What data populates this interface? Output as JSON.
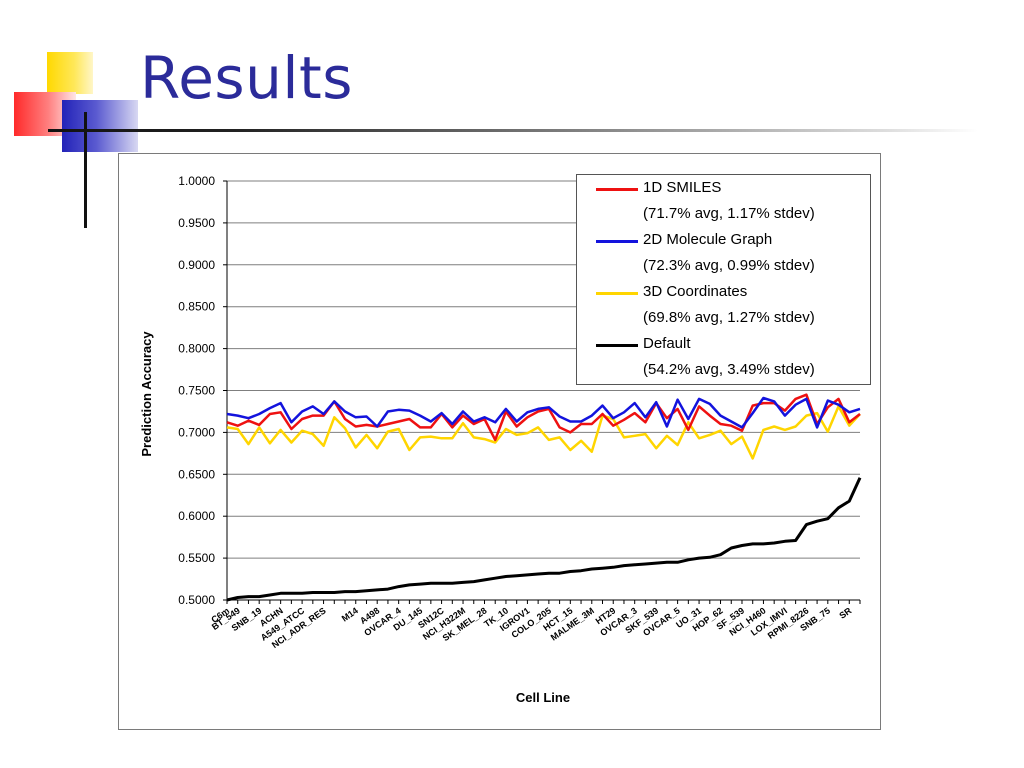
{
  "slide": {
    "title": "Results"
  },
  "chart_data": {
    "type": "line",
    "xlabel": "Cell Line",
    "ylabel": "Prediction Accuracy",
    "ylim": [
      0.5,
      1.0
    ],
    "yticks": [
      "1.0000",
      "0.9500",
      "0.9000",
      "0.8500",
      "0.8000",
      "0.7500",
      "0.7000",
      "0.6500",
      "0.6000",
      "0.5500",
      "0.5000"
    ],
    "grid": true,
    "legend_position": "top-right",
    "x_labels": [
      {
        "i": 0,
        "text": "C6m"
      },
      {
        "i": 1,
        "text": "BT_549"
      },
      {
        "i": 3,
        "text": "SNB_19"
      },
      {
        "i": 5,
        "text": "ACHN"
      },
      {
        "i": 7,
        "text": "A549_ATCC"
      },
      {
        "i": 9,
        "text": "NCI_ADR_RES"
      },
      {
        "i": 12,
        "text": "M14"
      },
      {
        "i": 14,
        "text": "A498"
      },
      {
        "i": 16,
        "text": "OVCAR_4"
      },
      {
        "i": 18,
        "text": "DU_145"
      },
      {
        "i": 20,
        "text": "SN12C"
      },
      {
        "i": 22,
        "text": "NCI_H322M"
      },
      {
        "i": 24,
        "text": "SK_MEL_28"
      },
      {
        "i": 26,
        "text": "TK_10"
      },
      {
        "i": 28,
        "text": "IGROV1"
      },
      {
        "i": 30,
        "text": "COLO_205"
      },
      {
        "i": 32,
        "text": "HCT_15"
      },
      {
        "i": 34,
        "text": "MALME_3M"
      },
      {
        "i": 36,
        "text": "HT29"
      },
      {
        "i": 38,
        "text": "OVCAR_3"
      },
      {
        "i": 40,
        "text": "SKF_539"
      },
      {
        "i": 42,
        "text": "OVCAR_5"
      },
      {
        "i": 44,
        "text": "UO_31"
      },
      {
        "i": 46,
        "text": "HOP_62"
      },
      {
        "i": 48,
        "text": "SF_539"
      },
      {
        "i": 50,
        "text": "NCI_H460"
      },
      {
        "i": 52,
        "text": "LOX_IMVI"
      },
      {
        "i": 54,
        "text": "RPMI_8226"
      },
      {
        "i": 56,
        "text": "SNB_75"
      },
      {
        "i": 58,
        "text": "SR"
      }
    ],
    "series": [
      {
        "name": "1D SMILES",
        "stat": "(71.7% avg, 1.17% stdev)",
        "color": "#ee1111",
        "values": [
          0.712,
          0.708,
          0.714,
          0.709,
          0.722,
          0.724,
          0.704,
          0.716,
          0.72,
          0.72,
          0.737,
          0.716,
          0.707,
          0.709,
          0.707,
          0.71,
          0.713,
          0.716,
          0.706,
          0.706,
          0.722,
          0.706,
          0.72,
          0.71,
          0.716,
          0.691,
          0.725,
          0.707,
          0.718,
          0.725,
          0.728,
          0.706,
          0.7,
          0.71,
          0.71,
          0.722,
          0.708,
          0.715,
          0.723,
          0.712,
          0.735,
          0.717,
          0.728,
          0.703,
          0.731,
          0.72,
          0.71,
          0.708,
          0.702,
          0.732,
          0.735,
          0.735,
          0.726,
          0.74,
          0.745,
          0.71,
          0.73,
          0.74,
          0.712,
          0.722
        ]
      },
      {
        "name": "2D Molecule Graph",
        "stat": "(72.3% avg, 0.99% stdev)",
        "color": "#1313dd",
        "values": [
          0.722,
          0.72,
          0.717,
          0.722,
          0.729,
          0.735,
          0.712,
          0.725,
          0.731,
          0.722,
          0.737,
          0.725,
          0.718,
          0.719,
          0.707,
          0.725,
          0.727,
          0.726,
          0.72,
          0.713,
          0.723,
          0.71,
          0.725,
          0.713,
          0.718,
          0.712,
          0.728,
          0.713,
          0.724,
          0.728,
          0.73,
          0.719,
          0.713,
          0.713,
          0.72,
          0.732,
          0.717,
          0.724,
          0.735,
          0.718,
          0.736,
          0.707,
          0.739,
          0.716,
          0.74,
          0.734,
          0.72,
          0.713,
          0.706,
          0.723,
          0.741,
          0.737,
          0.72,
          0.733,
          0.74,
          0.706,
          0.738,
          0.733,
          0.724,
          0.728
        ]
      },
      {
        "name": "3D Coordinates",
        "stat": "(69.8% avg, 1.27% stdev)",
        "color": "#ffd500",
        "values": [
          0.706,
          0.704,
          0.686,
          0.706,
          0.687,
          0.703,
          0.688,
          0.702,
          0.698,
          0.684,
          0.718,
          0.705,
          0.682,
          0.697,
          0.681,
          0.701,
          0.704,
          0.679,
          0.694,
          0.695,
          0.693,
          0.693,
          0.711,
          0.694,
          0.692,
          0.688,
          0.704,
          0.697,
          0.699,
          0.706,
          0.691,
          0.694,
          0.679,
          0.69,
          0.677,
          0.72,
          0.716,
          0.694,
          0.696,
          0.698,
          0.681,
          0.696,
          0.685,
          0.712,
          0.693,
          0.697,
          0.702,
          0.686,
          0.695,
          0.669,
          0.703,
          0.707,
          0.703,
          0.707,
          0.72,
          0.723,
          0.701,
          0.731,
          0.708,
          0.722
        ]
      },
      {
        "name": "Default",
        "stat": "(54.2% avg, 3.49% stdev)",
        "color": "#000000",
        "values": [
          0.5,
          0.503,
          0.504,
          0.504,
          0.506,
          0.508,
          0.508,
          0.508,
          0.509,
          0.509,
          0.509,
          0.51,
          0.51,
          0.511,
          0.512,
          0.513,
          0.516,
          0.518,
          0.519,
          0.52,
          0.52,
          0.52,
          0.521,
          0.522,
          0.524,
          0.526,
          0.528,
          0.529,
          0.53,
          0.531,
          0.532,
          0.532,
          0.534,
          0.535,
          0.537,
          0.538,
          0.539,
          0.541,
          0.542,
          0.543,
          0.544,
          0.545,
          0.545,
          0.548,
          0.55,
          0.551,
          0.554,
          0.562,
          0.565,
          0.567,
          0.567,
          0.568,
          0.57,
          0.571,
          0.59,
          0.594,
          0.597,
          0.61,
          0.618,
          0.646
        ]
      }
    ]
  }
}
